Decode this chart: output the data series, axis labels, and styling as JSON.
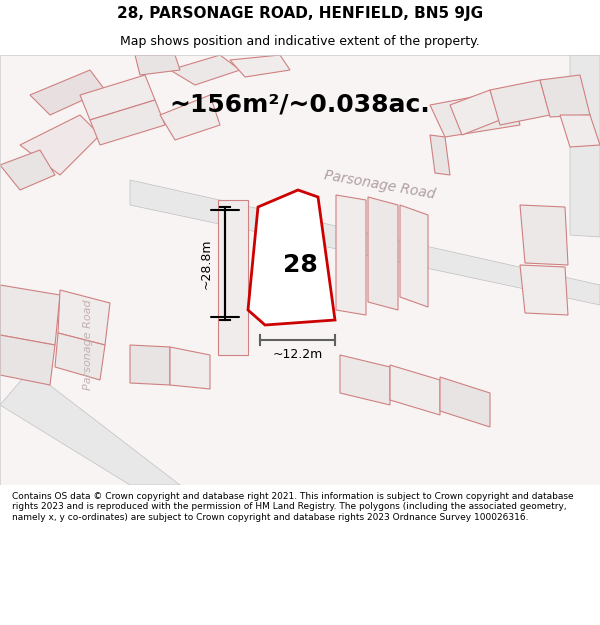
{
  "title_line1": "28, PARSONAGE ROAD, HENFIELD, BN5 9JG",
  "title_line2": "Map shows position and indicative extent of the property.",
  "area_text": "~156m²/~0.038ac.",
  "label_28": "28",
  "dim_width": "~12.2m",
  "dim_height": "~28.8m",
  "road_label_1": "Parsonage Road",
  "road_label_2": "Parsonage Road",
  "footer_text": "Contains OS data © Crown copyright and database right 2021. This information is subject to Crown copyright and database rights 2023 and is reproduced with the permission of HM Land Registry. The polygons (including the associated geometry, namely x, y co-ordinates) are subject to Crown copyright and database rights 2023 Ordnance Survey 100026316.",
  "bg_color": "#f5f0f0",
  "map_bg": "#ffffff",
  "plot_color_fill": "#ffffff",
  "plot_color_stroke": "#cc0000",
  "neighbor_color": "#f5c0c0",
  "neighbor_fill": "none",
  "gray_fill": "#d8d8d8",
  "title_bg": "#ffffff"
}
